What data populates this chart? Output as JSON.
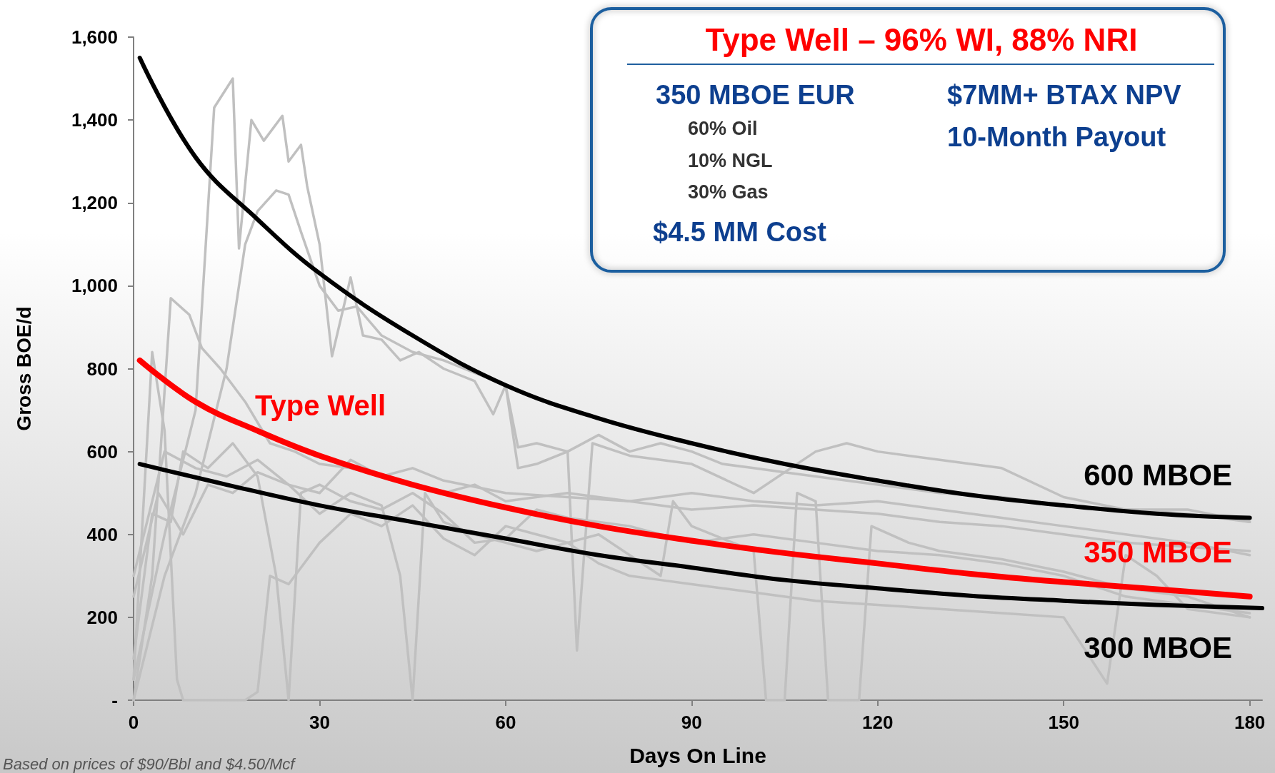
{
  "chart_data": {
    "type": "line",
    "title": "Type Well – 96% WI, 88% NRI",
    "xlabel": "Days On Line",
    "ylabel": "Gross BOE/d",
    "xlim": [
      0,
      182
    ],
    "xticks": [
      0,
      30,
      60,
      90,
      120,
      150,
      180
    ],
    "ylim": [
      0,
      1600
    ],
    "yticks": [
      {
        "value": 0,
        "label": "-"
      },
      {
        "value": 200,
        "label": "200"
      },
      {
        "value": 400,
        "label": "400"
      },
      {
        "value": 600,
        "label": "600"
      },
      {
        "value": 800,
        "label": "800"
      },
      {
        "value": 1000,
        "label": "1,000"
      },
      {
        "value": 1200,
        "label": "1,200"
      },
      {
        "value": 1400,
        "label": "1,400"
      },
      {
        "value": 1600,
        "label": "1,600"
      }
    ],
    "grid": false,
    "legend": false,
    "marker": "none",
    "line_style": "solid",
    "series": [
      {
        "color": "#c0c0c0",
        "x": [
          0,
          5,
          10,
          13,
          16,
          17,
          19,
          21,
          24,
          25,
          27,
          28,
          30,
          32,
          35,
          37,
          40,
          43,
          46,
          50,
          55,
          58,
          60,
          62,
          65,
          70,
          75,
          80,
          85,
          90,
          95,
          100,
          105,
          110,
          115,
          120,
          130,
          140,
          150,
          160,
          170,
          180
        ],
        "values": [
          50,
          400,
          700,
          1430,
          1500,
          1090,
          1400,
          1350,
          1410,
          1300,
          1340,
          1240,
          1100,
          830,
          1020,
          880,
          870,
          820,
          840,
          800,
          770,
          690,
          760,
          610,
          620,
          600,
          640,
          600,
          620,
          600,
          570,
          560,
          550,
          540,
          530,
          520,
          500,
          490,
          470,
          460,
          450,
          430
        ]
      },
      {
        "color": "#c0c0c0",
        "x": [
          0,
          5,
          10,
          15,
          18,
          20,
          23,
          25,
          27,
          30,
          33,
          36,
          40,
          45,
          50,
          55,
          60,
          62,
          65,
          70,
          71.5,
          74,
          80,
          90,
          100,
          110,
          115,
          120,
          130,
          140,
          150,
          160,
          170,
          180
        ],
        "values": [
          0,
          300,
          500,
          800,
          1100,
          1180,
          1230,
          1220,
          1130,
          1000,
          940,
          950,
          880,
          840,
          820,
          790,
          760,
          560,
          570,
          600,
          120,
          620,
          590,
          570,
          500,
          600,
          620,
          600,
          580,
          560,
          490,
          460,
          460,
          430
        ]
      },
      {
        "color": "#c0c0c0",
        "x": [
          0,
          3,
          6,
          9,
          11,
          14,
          18,
          22,
          26,
          30,
          35,
          40,
          45,
          50,
          60,
          70,
          80,
          90,
          100,
          110,
          120,
          130,
          140,
          150,
          160,
          170,
          180
        ],
        "values": [
          0,
          300,
          970,
          930,
          850,
          800,
          720,
          620,
          600,
          570,
          560,
          540,
          560,
          530,
          500,
          490,
          480,
          460,
          470,
          460,
          450,
          430,
          420,
          400,
          380,
          370,
          360
        ]
      },
      {
        "color": "#c0c0c0",
        "x": [
          0,
          3,
          5,
          7,
          8,
          18,
          20,
          22,
          25,
          30,
          35,
          40,
          45,
          50,
          55,
          60,
          65,
          70,
          75,
          80,
          85,
          87,
          90,
          95,
          100,
          102,
          105,
          107,
          110,
          112,
          117,
          119,
          125,
          130,
          140,
          150,
          160,
          170,
          180
        ],
        "values": [
          50,
          840,
          650,
          50,
          0,
          0,
          20,
          300,
          280,
          380,
          450,
          420,
          470,
          390,
          350,
          420,
          400,
          380,
          400,
          350,
          300,
          480,
          420,
          390,
          360,
          0,
          0,
          500,
          480,
          0,
          0,
          420,
          380,
          360,
          340,
          310,
          270,
          250,
          200
        ]
      },
      {
        "color": "#c0c0c0",
        "x": [
          0,
          5,
          10,
          15,
          20,
          25,
          30,
          35,
          40,
          43,
          45,
          47,
          50,
          55,
          60,
          65,
          70,
          75,
          80,
          85,
          90,
          95,
          100,
          110,
          120,
          130,
          140,
          150,
          157,
          160,
          165,
          170,
          180
        ],
        "values": [
          300,
          600,
          560,
          540,
          580,
          520,
          450,
          500,
          470,
          300,
          0,
          500,
          430,
          400,
          380,
          360,
          380,
          330,
          300,
          290,
          280,
          270,
          260,
          240,
          230,
          220,
          210,
          200,
          40,
          350,
          300,
          220,
          200
        ]
      },
      {
        "color": "#c0c0c0",
        "x": [
          0,
          3,
          6,
          8,
          12,
          16,
          20,
          23,
          25,
          27,
          30,
          35,
          40,
          45,
          50,
          55,
          60,
          65,
          70,
          80,
          90,
          100,
          110,
          120,
          130,
          140,
          150,
          160,
          170,
          180
        ],
        "values": [
          100,
          450,
          430,
          600,
          560,
          620,
          540,
          300,
          0,
          500,
          520,
          480,
          460,
          500,
          450,
          380,
          390,
          460,
          440,
          420,
          380,
          400,
          380,
          360,
          350,
          330,
          300,
          250,
          230,
          210
        ]
      },
      {
        "color": "#c0c0c0",
        "x": [
          0,
          4,
          8,
          12,
          16,
          20,
          25,
          30,
          35,
          40,
          45,
          50,
          55,
          60,
          70,
          80,
          90,
          100,
          110,
          120,
          130,
          140,
          150,
          160,
          170,
          180
        ],
        "values": [
          250,
          500,
          400,
          520,
          500,
          550,
          520,
          500,
          580,
          540,
          520,
          500,
          520,
          480,
          500,
          480,
          500,
          480,
          470,
          480,
          460,
          440,
          420,
          400,
          380,
          350
        ]
      },
      {
        "name": "600 MBOE",
        "color": "#000000",
        "x": [
          1,
          10,
          20,
          30,
          45,
          60,
          75,
          90,
          105,
          120,
          135,
          150,
          165,
          180
        ],
        "values": [
          1550,
          1310,
          1160,
          1030,
          880,
          760,
          680,
          620,
          570,
          530,
          495,
          470,
          450,
          440
        ]
      },
      {
        "name": "300 MBOE",
        "color": "#000000",
        "x": [
          1,
          15,
          30,
          45,
          60,
          75,
          90,
          105,
          120,
          135,
          150,
          165,
          182
        ],
        "values": [
          570,
          520,
          470,
          430,
          390,
          350,
          320,
          290,
          270,
          252,
          240,
          230,
          222
        ]
      },
      {
        "name": "350 MBOE",
        "color": "#ff0000",
        "x": [
          1,
          10,
          20,
          30,
          45,
          60,
          75,
          90,
          105,
          120,
          135,
          150,
          165,
          180
        ],
        "values": [
          820,
          720,
          650,
          590,
          520,
          465,
          420,
          385,
          355,
          330,
          305,
          285,
          268,
          250
        ]
      }
    ],
    "annotations": [
      "350 MBOE EUR",
      "60% Oil",
      "10% NGL",
      "30% Gas",
      "$4.5 MM Cost",
      "$7MM+ BTAX NPV",
      "10-Month Payout",
      "Type Well",
      "Based on prices of $90/Bbl and $4.50/Mcf"
    ]
  }
}
